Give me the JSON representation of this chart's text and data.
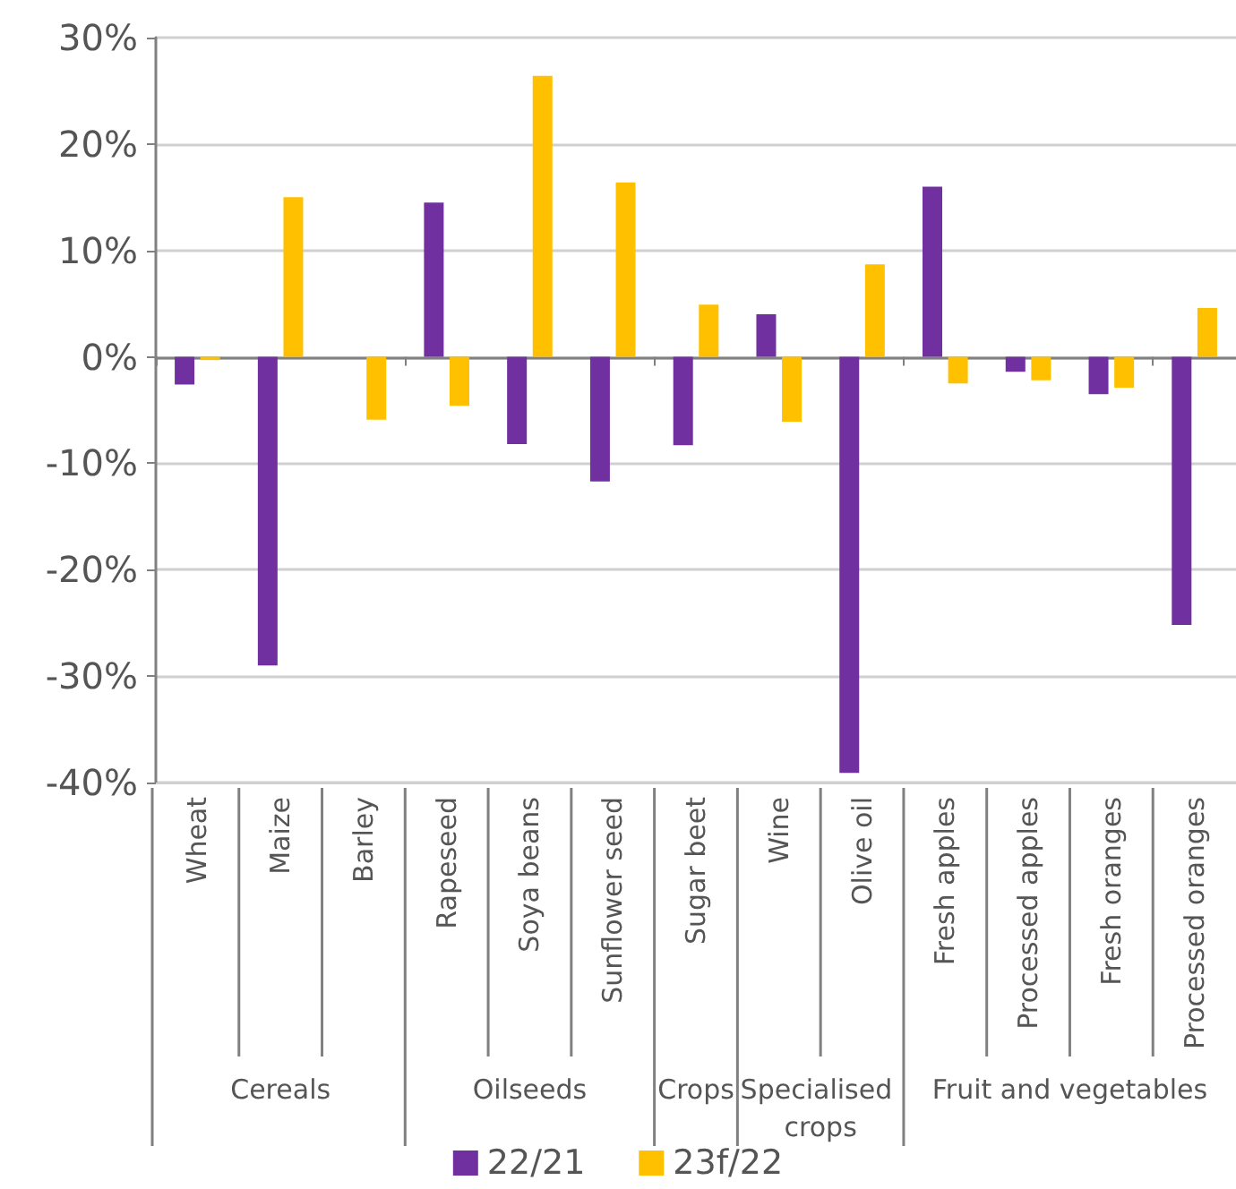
{
  "chart_data": {
    "type": "bar",
    "categories": [
      "Wheat",
      "Maize",
      "Barley",
      "Rapeseed",
      "Soya beans",
      "Sunflower seed",
      "Sugar beet",
      "Wine",
      "Olive oil",
      "Fresh apples",
      "Processed apples",
      "Fresh oranges",
      "Processed oranges"
    ],
    "series": [
      {
        "name": "22/21",
        "color": "#7030a0",
        "values": [
          -2.6,
          -29.0,
          0,
          14.5,
          -8.2,
          -11.7,
          -8.3,
          4.0,
          -39.1,
          16.0,
          -1.4,
          -3.5,
          -25.2
        ]
      },
      {
        "name": "23f/22",
        "color": "#ffc000",
        "values": [
          -0.3,
          15.0,
          -5.9,
          -4.6,
          26.4,
          16.4,
          4.9,
          -6.1,
          8.7,
          -2.5,
          -2.2,
          -2.9,
          4.6
        ]
      }
    ],
    "ylim": [
      -40,
      30
    ],
    "yticks": [
      {
        "value": -40,
        "label": "-40%"
      },
      {
        "value": -30,
        "label": "-30%"
      },
      {
        "value": -20,
        "label": "-20%"
      },
      {
        "value": -10,
        "label": "-10%"
      },
      {
        "value": 0,
        "label": "0%"
      },
      {
        "value": 10,
        "label": "10%"
      },
      {
        "value": 20,
        "label": "20%"
      },
      {
        "value": 30,
        "label": "30%"
      }
    ],
    "annotations": [
      "Cereals",
      "Oilseeds",
      "Crops",
      "Specialised crops",
      "Fruit and vegetables"
    ],
    "grid": "y",
    "legend": "bottom"
  }
}
